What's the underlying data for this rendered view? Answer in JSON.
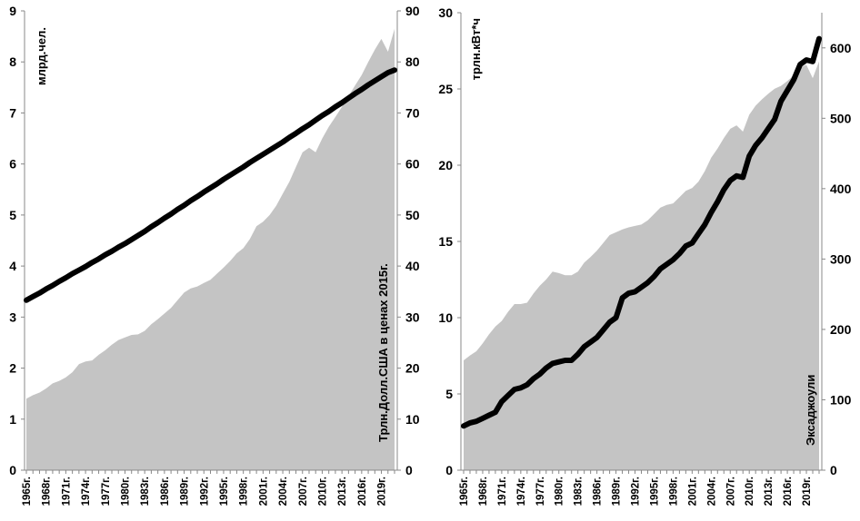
{
  "chart_data": [
    {
      "type": "line+area",
      "x": [
        1965,
        1966,
        1967,
        1968,
        1969,
        1970,
        1971,
        1972,
        1973,
        1974,
        1975,
        1976,
        1977,
        1978,
        1979,
        1980,
        1981,
        1982,
        1983,
        1984,
        1985,
        1986,
        1987,
        1988,
        1989,
        1990,
        1991,
        1992,
        1993,
        1994,
        1995,
        1996,
        1997,
        1998,
        1999,
        2000,
        2001,
        2002,
        2003,
        2004,
        2005,
        2006,
        2007,
        2008,
        2009,
        2010,
        2011,
        2012,
        2013,
        2014,
        2015,
        2016,
        2017,
        2018,
        2019,
        2020,
        2021
      ],
      "x_tick_labels": [
        "1965г.",
        "1968г.",
        "1971г.",
        "1974г.",
        "1977г.",
        "1980г.",
        "1983г.",
        "1986г.",
        "1989г.",
        "1992г.",
        "1995г.",
        "1998г.",
        "2001г.",
        "2004г.",
        "2007г.",
        "2010г.",
        "2013г.",
        "2016г.",
        "2019г."
      ],
      "ylabel_left": "млрд.чел.",
      "ylabel_right": "Трлн.Долл.США в ценах 2015г.",
      "ylim_left": [
        0,
        9
      ],
      "ylim_right": [
        0,
        90
      ],
      "yticks_left": [
        "0",
        "1",
        "2",
        "3",
        "4",
        "5",
        "6",
        "7",
        "8",
        "9"
      ],
      "yticks_right": [
        "0",
        "10",
        "20",
        "30",
        "40",
        "50",
        "60",
        "70",
        "80",
        "90"
      ],
      "series": [
        {
          "name": "population",
          "kind": "line",
          "axis": "left",
          "color": "#000000",
          "values": [
            3.33,
            3.4,
            3.47,
            3.55,
            3.62,
            3.7,
            3.77,
            3.85,
            3.92,
            3.99,
            4.07,
            4.14,
            4.22,
            4.29,
            4.37,
            4.44,
            4.52,
            4.6,
            4.68,
            4.77,
            4.85,
            4.94,
            5.02,
            5.11,
            5.19,
            5.28,
            5.36,
            5.45,
            5.53,
            5.61,
            5.7,
            5.78,
            5.86,
            5.94,
            6.03,
            6.11,
            6.19,
            6.27,
            6.35,
            6.43,
            6.52,
            6.6,
            6.69,
            6.77,
            6.86,
            6.95,
            7.03,
            7.12,
            7.2,
            7.29,
            7.38,
            7.46,
            7.55,
            7.63,
            7.71,
            7.79,
            7.84
          ]
        },
        {
          "name": "gdp",
          "kind": "area",
          "axis": "right",
          "color": "#c4c4c4",
          "values": [
            14,
            14.7,
            15.2,
            16,
            17,
            17.5,
            18.2,
            19.2,
            20.8,
            21.3,
            21.5,
            22.6,
            23.5,
            24.6,
            25.5,
            26,
            26.5,
            26.6,
            27.3,
            28.6,
            29.6,
            30.7,
            31.8,
            33.3,
            34.8,
            35.6,
            36,
            36.7,
            37.3,
            38.5,
            39.7,
            41,
            42.5,
            43.5,
            45.3,
            47.8,
            48.7,
            50,
            51.8,
            54.2,
            56.5,
            59.4,
            62.3,
            63.2,
            62.3,
            65,
            67.3,
            69.2,
            71.2,
            73.3,
            75.4,
            77.4,
            80,
            82.4,
            84.5,
            82,
            86.5
          ]
        }
      ]
    },
    {
      "type": "line+area",
      "x": [
        1965,
        1966,
        1967,
        1968,
        1969,
        1970,
        1971,
        1972,
        1973,
        1974,
        1975,
        1976,
        1977,
        1978,
        1979,
        1980,
        1981,
        1982,
        1983,
        1984,
        1985,
        1986,
        1987,
        1988,
        1989,
        1990,
        1991,
        1992,
        1993,
        1994,
        1995,
        1996,
        1997,
        1998,
        1999,
        2000,
        2001,
        2002,
        2003,
        2004,
        2005,
        2006,
        2007,
        2008,
        2009,
        2010,
        2011,
        2012,
        2013,
        2014,
        2015,
        2016,
        2017,
        2018,
        2019,
        2020,
        2021
      ],
      "x_tick_labels": [
        "1965г.",
        "1968г.",
        "1971г.",
        "1974г.",
        "1977г.",
        "1980г.",
        "1983г.",
        "1986г.",
        "1989г.",
        "1992г.",
        "1995г.",
        "1998г.",
        "2001г.",
        "2004г.",
        "2007г.",
        "2010г.",
        "2013г.",
        "2016г.",
        "2019г."
      ],
      "ylabel_left": "трлн.кВт*ч",
      "ylabel_right": "Эксаджоули",
      "ylim_left": [
        0,
        30
      ],
      "ylim_right": [
        0,
        650
      ],
      "yticks_left": [
        "0",
        "5",
        "10",
        "15",
        "20",
        "25",
        "30"
      ],
      "yticks_right": [
        "0",
        "100",
        "200",
        "300",
        "400",
        "500",
        "600"
      ],
      "series": [
        {
          "name": "electricity",
          "kind": "line",
          "axis": "left",
          "color": "#000000",
          "values": [
            2.9,
            3.1,
            3.2,
            3.4,
            3.6,
            3.8,
            4.5,
            4.9,
            5.3,
            5.4,
            5.6,
            6.0,
            6.3,
            6.7,
            7.0,
            7.1,
            7.2,
            7.2,
            7.6,
            8.1,
            8.4,
            8.7,
            9.2,
            9.7,
            10.0,
            11.3,
            11.6,
            11.7,
            12.0,
            12.3,
            12.7,
            13.2,
            13.5,
            13.8,
            14.2,
            14.7,
            14.9,
            15.5,
            16.1,
            16.9,
            17.6,
            18.4,
            19.0,
            19.3,
            19.2,
            20.6,
            21.3,
            21.8,
            22.4,
            23.0,
            24.2,
            24.9,
            25.6,
            26.6,
            26.9,
            26.8,
            28.3
          ]
        },
        {
          "name": "primary_energy",
          "kind": "area",
          "axis": "right",
          "color": "#c4c4c4",
          "values": [
            156,
            163,
            169,
            180,
            193,
            204,
            212,
            225,
            236,
            236,
            238,
            251,
            262,
            271,
            282,
            280,
            277,
            277,
            282,
            295,
            303,
            312,
            323,
            334,
            338,
            342,
            345,
            347,
            349,
            355,
            364,
            373,
            377,
            379,
            388,
            397,
            401,
            410,
            425,
            444,
            457,
            472,
            485,
            490,
            481,
            505,
            518,
            527,
            535,
            542,
            546,
            553,
            561,
            572,
            576,
            557,
            581
          ]
        }
      ]
    }
  ]
}
